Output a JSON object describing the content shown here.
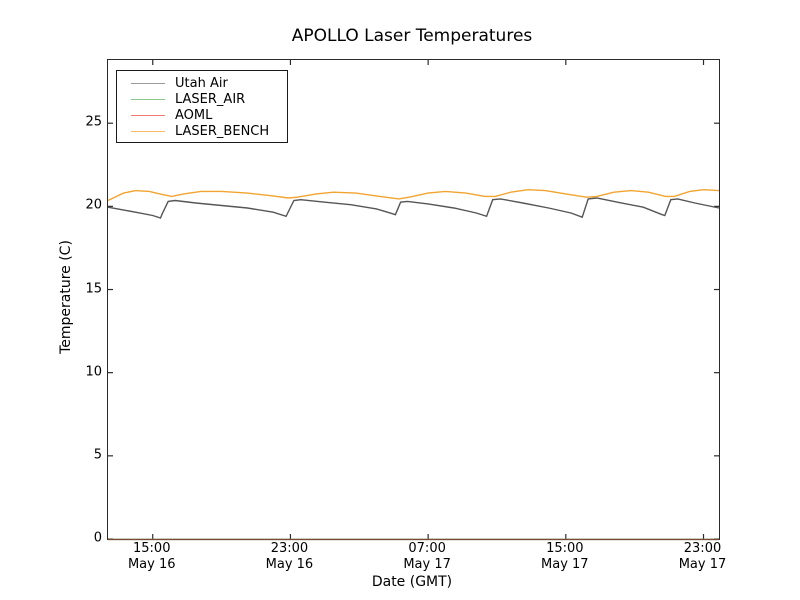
{
  "chart": {
    "title": "APOLLO Laser Temperatures",
    "x_label": "Date (GMT)",
    "y_label": "Temperature (C)"
  },
  "chart_data": {
    "type": "line",
    "title": "APOLLO Laser Temperatures",
    "xlabel": "Date (GMT)",
    "ylabel": "Temperature (C)",
    "x_unit": "hours since May 16 00:00 GMT",
    "xlim": [
      12.4,
      47.9
    ],
    "ylim": [
      0,
      28.8
    ],
    "grid": false,
    "legend_position": "upper-left",
    "y_ticks": [
      0,
      5,
      10,
      15,
      20,
      25
    ],
    "x_ticks": [
      {
        "hour": 15,
        "time": "15:00",
        "date": "May 16"
      },
      {
        "hour": 23,
        "time": "23:00",
        "date": "May 16"
      },
      {
        "hour": 31,
        "time": "07:00",
        "date": "May 17"
      },
      {
        "hour": 39,
        "time": "15:00",
        "date": "May 17"
      },
      {
        "hour": 47,
        "time": "23:00",
        "date": "May 17"
      }
    ],
    "series": [
      {
        "name": "Utah Air",
        "color": "#9a9a9a",
        "render_color": "#565656",
        "points": [
          [
            12.4,
            19.95
          ],
          [
            13.2,
            19.8
          ],
          [
            14.0,
            19.65
          ],
          [
            15.0,
            19.45
          ],
          [
            15.45,
            19.3
          ],
          [
            15.55,
            19.55
          ],
          [
            15.9,
            20.3
          ],
          [
            16.3,
            20.35
          ],
          [
            17.5,
            20.2
          ],
          [
            19.0,
            20.05
          ],
          [
            20.5,
            19.9
          ],
          [
            22.0,
            19.65
          ],
          [
            22.75,
            19.4
          ],
          [
            23.2,
            20.35
          ],
          [
            23.6,
            20.4
          ],
          [
            25.0,
            20.25
          ],
          [
            26.5,
            20.1
          ],
          [
            28.0,
            19.85
          ],
          [
            28.95,
            19.55
          ],
          [
            29.1,
            19.5
          ],
          [
            29.4,
            20.25
          ],
          [
            29.8,
            20.3
          ],
          [
            31.0,
            20.15
          ],
          [
            32.5,
            19.9
          ],
          [
            33.8,
            19.6
          ],
          [
            34.4,
            19.4
          ],
          [
            34.75,
            20.4
          ],
          [
            35.2,
            20.45
          ],
          [
            36.5,
            20.2
          ],
          [
            38.0,
            19.9
          ],
          [
            39.3,
            19.6
          ],
          [
            39.95,
            19.35
          ],
          [
            40.3,
            20.45
          ],
          [
            40.8,
            20.5
          ],
          [
            42.0,
            20.25
          ],
          [
            43.5,
            19.95
          ],
          [
            44.6,
            19.5
          ],
          [
            44.75,
            19.45
          ],
          [
            45.1,
            20.4
          ],
          [
            45.5,
            20.45
          ],
          [
            46.5,
            20.2
          ],
          [
            47.9,
            19.9
          ]
        ]
      },
      {
        "name": "LASER_AIR",
        "color": "#8ac58e",
        "render_color": "#8ac58e",
        "points": [
          [
            12.4,
            0
          ],
          [
            47.9,
            0
          ]
        ]
      },
      {
        "name": "AOML",
        "color": "#ee7970",
        "render_color": "#7a4a33",
        "points": [
          [
            12.4,
            0
          ],
          [
            47.9,
            0
          ]
        ]
      },
      {
        "name": "LASER_BENCH",
        "color": "#fabb63",
        "render_color": "#f2a431",
        "points": [
          [
            12.4,
            20.35
          ],
          [
            13.3,
            20.8
          ],
          [
            14.0,
            20.95
          ],
          [
            14.8,
            20.9
          ],
          [
            15.6,
            20.7
          ],
          [
            16.1,
            20.6
          ],
          [
            16.8,
            20.75
          ],
          [
            17.8,
            20.9
          ],
          [
            19.0,
            20.9
          ],
          [
            20.5,
            20.8
          ],
          [
            21.8,
            20.65
          ],
          [
            22.9,
            20.5
          ],
          [
            23.4,
            20.55
          ],
          [
            24.5,
            20.75
          ],
          [
            25.5,
            20.85
          ],
          [
            26.8,
            20.8
          ],
          [
            28.2,
            20.6
          ],
          [
            29.3,
            20.45
          ],
          [
            29.9,
            20.55
          ],
          [
            31.0,
            20.8
          ],
          [
            32.0,
            20.9
          ],
          [
            33.2,
            20.8
          ],
          [
            34.3,
            20.6
          ],
          [
            34.9,
            20.6
          ],
          [
            35.8,
            20.85
          ],
          [
            36.8,
            21.0
          ],
          [
            37.8,
            20.95
          ],
          [
            39.0,
            20.75
          ],
          [
            40.2,
            20.55
          ],
          [
            40.8,
            20.6
          ],
          [
            41.8,
            20.85
          ],
          [
            42.8,
            20.95
          ],
          [
            43.8,
            20.85
          ],
          [
            44.8,
            20.6
          ],
          [
            45.3,
            20.6
          ],
          [
            46.2,
            20.9
          ],
          [
            47.0,
            21.0
          ],
          [
            47.9,
            20.95
          ]
        ]
      }
    ],
    "colors": {
      "background": "#ffffff",
      "text": "#000000",
      "spine": "#2b2b2b",
      "tick": "#2b2b2b"
    }
  }
}
